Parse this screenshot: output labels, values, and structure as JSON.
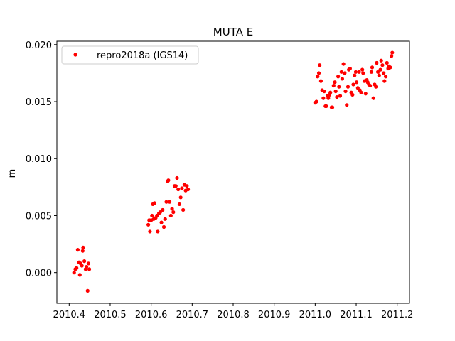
{
  "chart_data": {
    "type": "scatter",
    "title": "MUTA E",
    "xlabel": "",
    "ylabel": "m",
    "xlim": [
      2010.37,
      2011.23
    ],
    "ylim": [
      -0.0027,
      0.0203
    ],
    "xticks": [
      2010.4,
      2010.5,
      2010.6,
      2010.7,
      2010.8,
      2010.9,
      2011.0,
      2011.1,
      2011.2
    ],
    "xtick_labels": [
      "2010.4",
      "2010.5",
      "2010.6",
      "2010.7",
      "2010.8",
      "2010.9",
      "2011.0",
      "2011.1",
      "2011.2"
    ],
    "yticks": [
      0.0,
      0.005,
      0.01,
      0.015,
      0.02
    ],
    "ytick_labels": [
      "0.000",
      "0.005",
      "0.010",
      "0.015",
      "0.020"
    ],
    "grid": false,
    "legend_position": "top-left",
    "series": [
      {
        "name": "repro2018a (IGS14)",
        "color": "#ff0000",
        "marker": "circle",
        "points": [
          [
            2010.412,
            0.0
          ],
          [
            2010.415,
            0.0003
          ],
          [
            2010.418,
            0.0004
          ],
          [
            2010.421,
            0.002
          ],
          [
            2010.424,
            0.0009
          ],
          [
            2010.426,
            -0.0002
          ],
          [
            2010.428,
            0.0008
          ],
          [
            2010.431,
            0.0006
          ],
          [
            2010.433,
            0.0019
          ],
          [
            2010.434,
            0.0022
          ],
          [
            2010.437,
            0.001
          ],
          [
            2010.44,
            0.0003
          ],
          [
            2010.442,
            0.0005
          ],
          [
            2010.445,
            -0.0016
          ],
          [
            2010.447,
            0.0008
          ],
          [
            2010.449,
            0.0003
          ],
          [
            2010.593,
            0.0042
          ],
          [
            2010.595,
            0.0046
          ],
          [
            2010.597,
            0.0036
          ],
          [
            2010.6,
            0.0046
          ],
          [
            2010.602,
            0.005
          ],
          [
            2010.604,
            0.006
          ],
          [
            2010.606,
            0.0047
          ],
          [
            2010.608,
            0.0061
          ],
          [
            2010.611,
            0.0048
          ],
          [
            2010.614,
            0.005
          ],
          [
            2010.616,
            0.0036
          ],
          [
            2010.619,
            0.0052
          ],
          [
            2010.622,
            0.0053
          ],
          [
            2010.625,
            0.0044
          ],
          [
            2010.628,
            0.0055
          ],
          [
            2010.631,
            0.004
          ],
          [
            2010.634,
            0.0047
          ],
          [
            2010.637,
            0.0062
          ],
          [
            2010.64,
            0.008
          ],
          [
            2010.642,
            0.0081
          ],
          [
            2010.645,
            0.0062
          ],
          [
            2010.648,
            0.005
          ],
          [
            2010.651,
            0.0056
          ],
          [
            2010.654,
            0.0053
          ],
          [
            2010.657,
            0.0076
          ],
          [
            2010.66,
            0.0076
          ],
          [
            2010.663,
            0.0083
          ],
          [
            2010.666,
            0.0073
          ],
          [
            2010.669,
            0.006
          ],
          [
            2010.672,
            0.0066
          ],
          [
            2010.675,
            0.0074
          ],
          [
            2010.678,
            0.0055
          ],
          [
            2010.681,
            0.0077
          ],
          [
            2010.684,
            0.0072
          ],
          [
            2010.687,
            0.0076
          ],
          [
            2010.69,
            0.0073
          ],
          [
            2011.0,
            0.0149
          ],
          [
            2011.003,
            0.015
          ],
          [
            2011.006,
            0.0172
          ],
          [
            2011.009,
            0.0175
          ],
          [
            2011.011,
            0.0182
          ],
          [
            2011.014,
            0.0168
          ],
          [
            2011.017,
            0.016
          ],
          [
            2011.02,
            0.0153
          ],
          [
            2011.022,
            0.0159
          ],
          [
            2011.025,
            0.0146
          ],
          [
            2011.027,
            0.0146
          ],
          [
            2011.03,
            0.0155
          ],
          [
            2011.032,
            0.0153
          ],
          [
            2011.035,
            0.0156
          ],
          [
            2011.037,
            0.0158
          ],
          [
            2011.04,
            0.0145
          ],
          [
            2011.042,
            0.0145
          ],
          [
            2011.045,
            0.0164
          ],
          [
            2011.048,
            0.0167
          ],
          [
            2011.05,
            0.0159
          ],
          [
            2011.053,
            0.0154
          ],
          [
            2011.056,
            0.0172
          ],
          [
            2011.058,
            0.0163
          ],
          [
            2011.061,
            0.0155
          ],
          [
            2011.064,
            0.0176
          ],
          [
            2011.066,
            0.017
          ],
          [
            2011.069,
            0.0183
          ],
          [
            2011.072,
            0.0175
          ],
          [
            2011.074,
            0.0159
          ],
          [
            2011.077,
            0.0147
          ],
          [
            2011.08,
            0.0163
          ],
          [
            2011.082,
            0.0178
          ],
          [
            2011.085,
            0.0179
          ],
          [
            2011.088,
            0.0158
          ],
          [
            2011.091,
            0.0156
          ],
          [
            2011.093,
            0.0165
          ],
          [
            2011.096,
            0.0173
          ],
          [
            2011.099,
            0.0176
          ],
          [
            2011.101,
            0.0167
          ],
          [
            2011.104,
            0.0162
          ],
          [
            2011.107,
            0.0176
          ],
          [
            2011.109,
            0.016
          ],
          [
            2011.112,
            0.0158
          ],
          [
            2011.115,
            0.0178
          ],
          [
            2011.117,
            0.0175
          ],
          [
            2011.12,
            0.0168
          ],
          [
            2011.123,
            0.0157
          ],
          [
            2011.126,
            0.0169
          ],
          [
            2011.128,
            0.0167
          ],
          [
            2011.131,
            0.0165
          ],
          [
            2011.134,
            0.0164
          ],
          [
            2011.137,
            0.0176
          ],
          [
            2011.139,
            0.018
          ],
          [
            2011.142,
            0.0153
          ],
          [
            2011.145,
            0.0165
          ],
          [
            2011.148,
            0.0163
          ],
          [
            2011.15,
            0.0184
          ],
          [
            2011.153,
            0.0176
          ],
          [
            2011.156,
            0.0173
          ],
          [
            2011.159,
            0.0178
          ],
          [
            2011.161,
            0.0186
          ],
          [
            2011.164,
            0.0182
          ],
          [
            2011.167,
            0.0175
          ],
          [
            2011.169,
            0.0168
          ],
          [
            2011.172,
            0.0172
          ],
          [
            2011.175,
            0.0184
          ],
          [
            2011.178,
            0.0179
          ],
          [
            2011.18,
            0.0181
          ],
          [
            2011.183,
            0.018
          ],
          [
            2011.186,
            0.019
          ],
          [
            2011.188,
            0.0193
          ]
        ]
      }
    ]
  }
}
